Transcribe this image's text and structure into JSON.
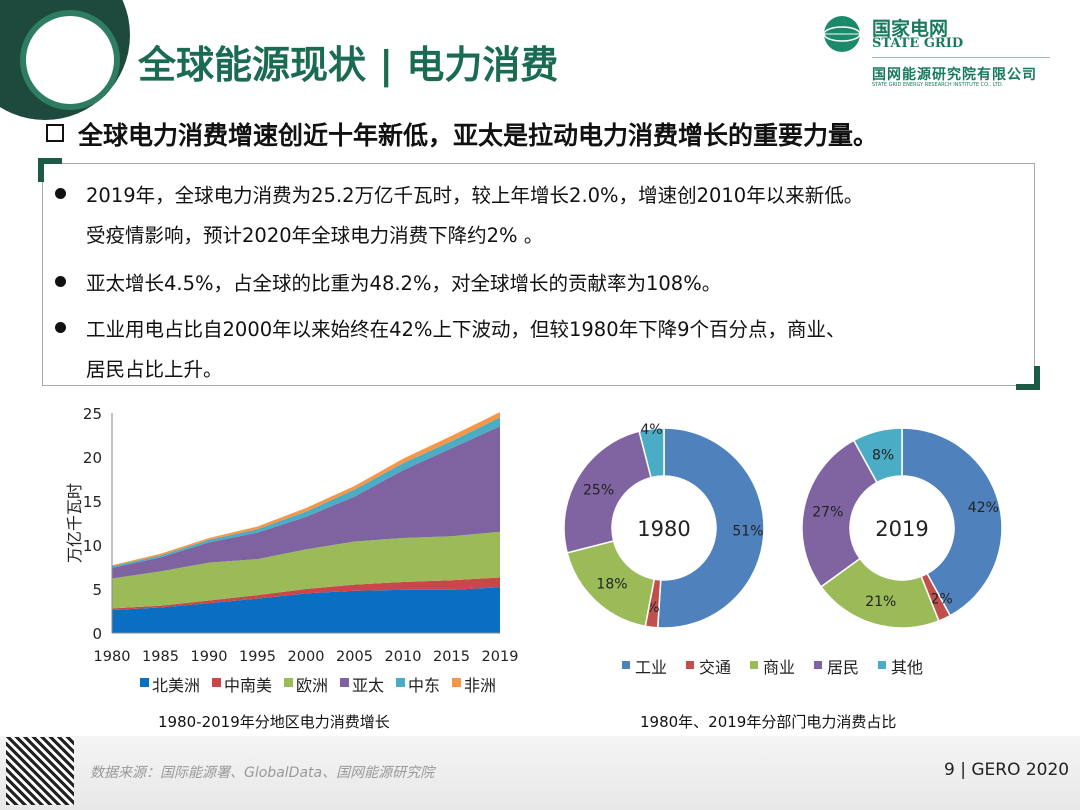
{
  "header": {
    "title": "全球能源现状 | 电力消费",
    "logo": {
      "cn": "国家电网",
      "en": "STATE GRID",
      "org_cn": "国网能源研究院有限公司",
      "org_en": "STATE GRID ENERGY RESEARCH INSTITUTE CO., LTD."
    }
  },
  "subtitle": "全球电力消费增速创近十年新低，亚太是拉动电力消费增长的重要力量。",
  "bullets": [
    {
      "lines": [
        "2019年，全球电力消费为25.2万亿千瓦时，较上年增长2.0%，增速创2010年以来新低。",
        "受疫情影响，预计2020年全球电力消费下降约2% 。"
      ]
    },
    {
      "lines": [
        "亚太增长4.5%，占全球的比重为48.2%，对全球增长的贡献率为108%。"
      ]
    },
    {
      "lines": [
        "工业用电占比自2000年以来始终在42%上下波动，但较1980年下降9个百分点，商业、",
        "居民占比上升。"
      ]
    }
  ],
  "chart_data": [
    {
      "type": "area",
      "stacked": true,
      "ylabel": "万亿千瓦时",
      "ylim": [
        0,
        25
      ],
      "yticks": [
        0,
        5,
        10,
        15,
        20,
        25
      ],
      "x": [
        "1980",
        "1985",
        "1990",
        "1995",
        "2000",
        "2005",
        "2010",
        "2015",
        "2019"
      ],
      "series": [
        {
          "name": "北美洲",
          "color": "#0a6fc2",
          "values": [
            2.6,
            2.9,
            3.4,
            3.9,
            4.5,
            4.8,
            4.9,
            4.9,
            5.2
          ]
        },
        {
          "name": "中南美",
          "color": "#c8484a",
          "values": [
            0.2,
            0.2,
            0.3,
            0.4,
            0.5,
            0.7,
            0.9,
            1.1,
            1.1
          ]
        },
        {
          "name": "欧洲",
          "color": "#9bbb59",
          "values": [
            3.4,
            3.9,
            4.3,
            4.1,
            4.5,
            4.9,
            5.0,
            5.0,
            5.2
          ]
        },
        {
          "name": "亚太",
          "color": "#7f63a1",
          "values": [
            1.2,
            1.6,
            2.3,
            3.0,
            3.7,
            5.1,
            7.7,
            10.0,
            12.0
          ]
        },
        {
          "name": "中东",
          "color": "#4bacc6",
          "values": [
            0.2,
            0.2,
            0.3,
            0.4,
            0.6,
            0.8,
            0.8,
            0.8,
            1.0
          ]
        },
        {
          "name": "非洲",
          "color": "#f79646",
          "values": [
            0.1,
            0.2,
            0.2,
            0.3,
            0.4,
            0.4,
            0.5,
            0.6,
            0.6
          ]
        }
      ],
      "caption": "1980-2019年分地区电力消费增长",
      "legend": "bottom"
    },
    {
      "type": "pie",
      "donut": true,
      "categories": [
        "工业",
        "交通",
        "商业",
        "居民",
        "其他"
      ],
      "colors": [
        "#4f81bd",
        "#c0504d",
        "#9bbb59",
        "#8064a2",
        "#4bacc6"
      ],
      "series": [
        {
          "name": "1980",
          "values": [
            51,
            2,
            18,
            25,
            4
          ]
        },
        {
          "name": "2019",
          "values": [
            42,
            2,
            21,
            27,
            8
          ]
        }
      ],
      "caption": "1980年、2019年分部门电力消费占比",
      "legend": "bottom"
    }
  ],
  "footer": {
    "source": "数据来源：国际能源署、GlobalData、国网能源研究院",
    "page": "9 | GERO 2020"
  }
}
